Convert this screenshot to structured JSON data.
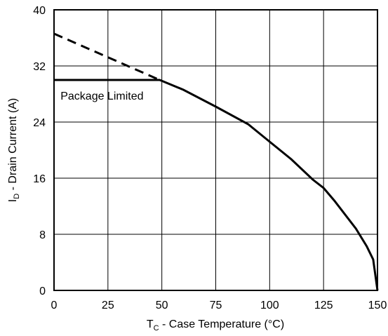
{
  "chart_data": {
    "type": "line",
    "xlabel": {
      "main": "T",
      "sub": "C",
      "rest": " - Case Temperature (°C)"
    },
    "ylabel": {
      "main": "I",
      "sub": "D",
      "rest": " - Drain Current (A)"
    },
    "xlim": [
      0,
      150
    ],
    "ylim": [
      0,
      40
    ],
    "x_ticks": [
      0,
      25,
      50,
      75,
      100,
      125,
      150
    ],
    "y_ticks": [
      0,
      8,
      16,
      24,
      32,
      40
    ],
    "grid": true,
    "legend": "none",
    "series": [
      {
        "style": "solid",
        "x": [
          0,
          49,
          60,
          75,
          90,
          100,
          110,
          120,
          125,
          130,
          140,
          145,
          148,
          150
        ],
        "y": [
          30,
          30,
          28.6,
          26.2,
          23.7,
          21.2,
          18.7,
          15.8,
          14.6,
          12.8,
          8.8,
          6.3,
          4.4,
          0
        ]
      },
      {
        "style": "dashed",
        "x": [
          0,
          49
        ],
        "y": [
          36.6,
          30
        ]
      }
    ],
    "annotations": [
      {
        "text": "Package Limited",
        "x": 3,
        "y": 27.2
      }
    ]
  }
}
